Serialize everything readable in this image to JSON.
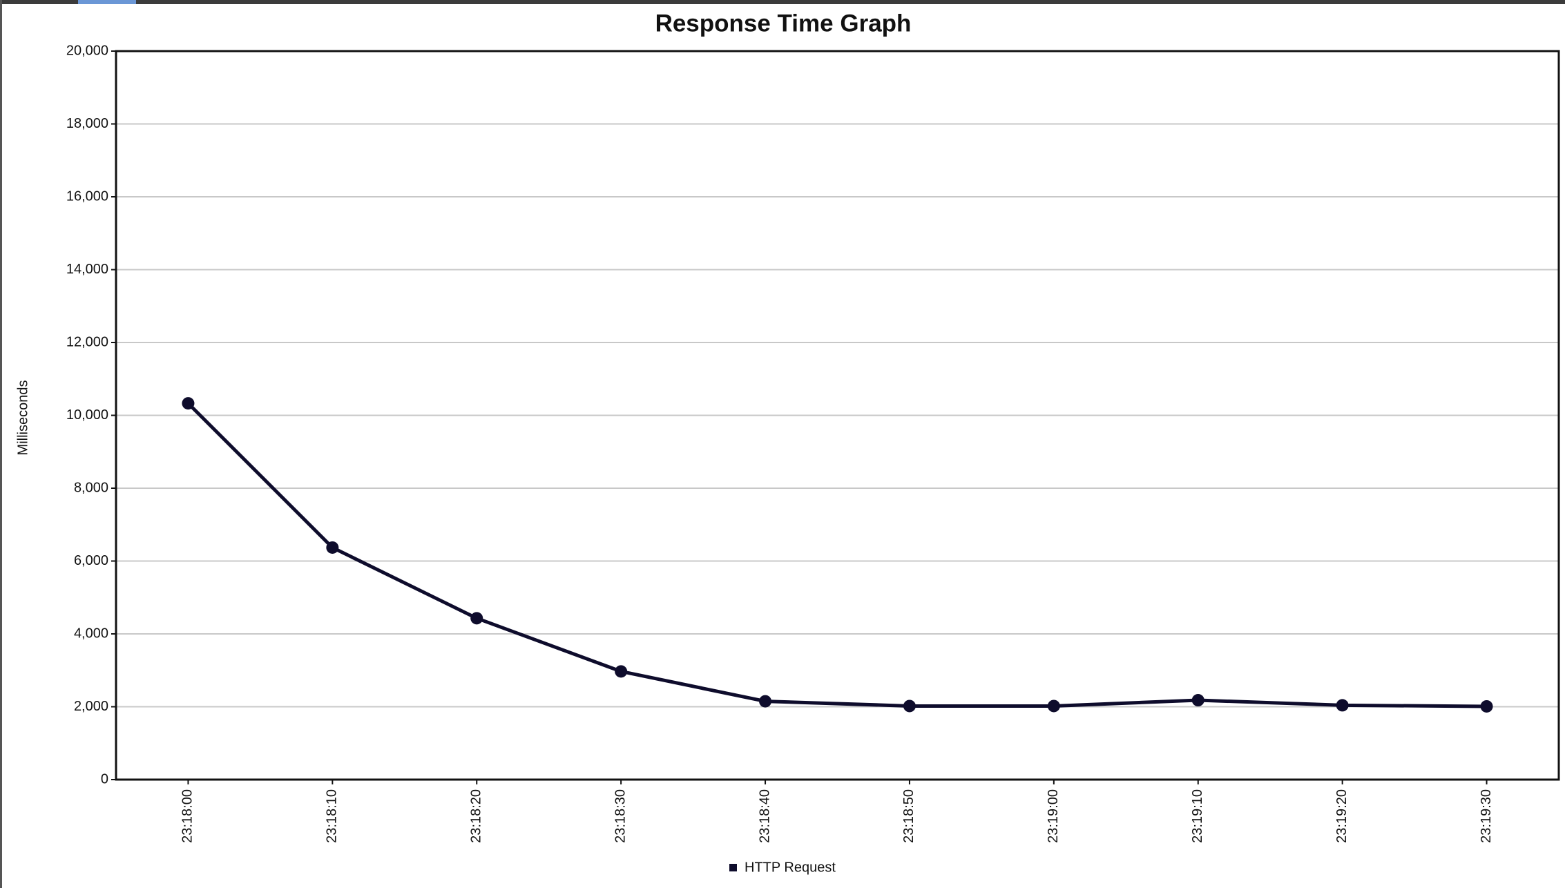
{
  "chart_data": {
    "type": "line",
    "title": "Response Time Graph",
    "y_label": "Milliseconds",
    "categories": [
      "23:18:00",
      "23:18:10",
      "23:18:20",
      "23:18:30",
      "23:18:40",
      "23:18:50",
      "23:19:00",
      "23:19:10",
      "23:19:20",
      "23:19:30"
    ],
    "series": [
      {
        "name": "HTTP Request",
        "color": "#0e0c2c",
        "values": [
          10330,
          6370,
          4430,
          2970,
          2150,
          2020,
          2020,
          2180,
          2040,
          2010
        ]
      }
    ],
    "ylim": [
      0,
      20000
    ],
    "yticks": [
      0,
      {
        "value": 2000,
        "label": "2,000"
      },
      {
        "value": 4000,
        "label": "4,000"
      },
      {
        "value": 6000,
        "label": "6,000"
      },
      {
        "value": 8000,
        "label": "8,000"
      },
      {
        "value": 10000,
        "label": "10,000"
      },
      {
        "value": 12000,
        "label": "12,000"
      },
      {
        "value": 14000,
        "label": "14,000"
      },
      {
        "value": 16000,
        "label": "16,000"
      },
      {
        "value": 18000,
        "label": "18,000"
      },
      {
        "value": 20000,
        "label": "20,000"
      }
    ],
    "grid": true
  }
}
